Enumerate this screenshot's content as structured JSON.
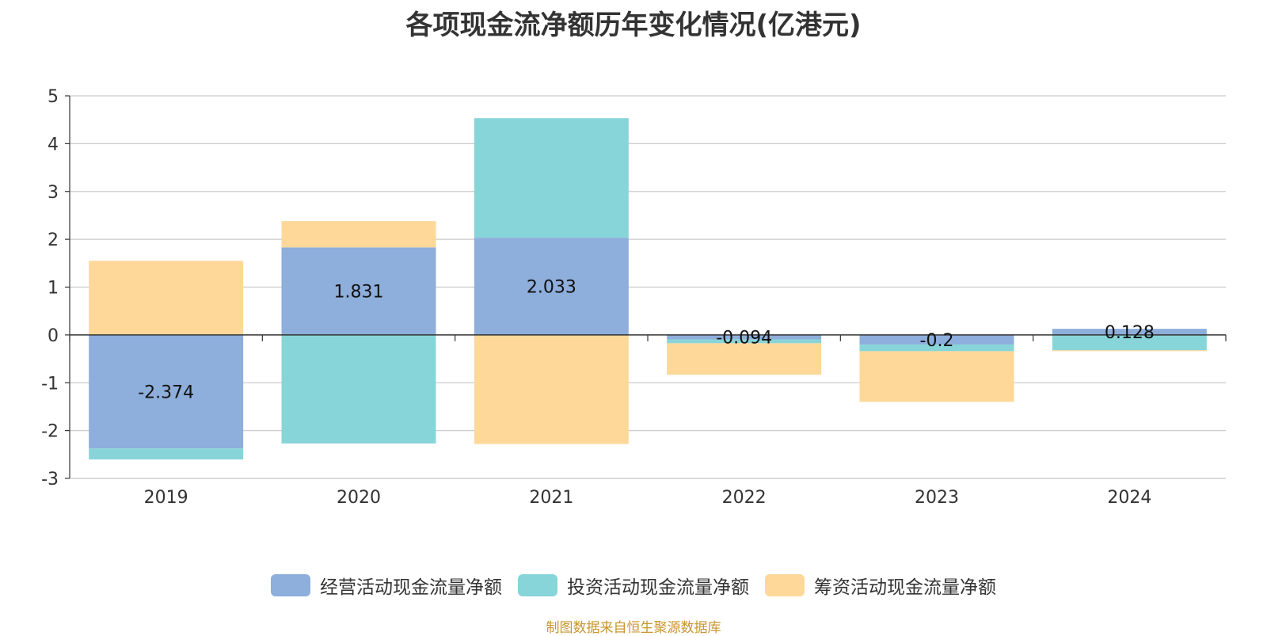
{
  "chart_data": {
    "type": "bar",
    "stacked": true,
    "title": "各项现金流净额历年变化情况(亿港元)",
    "categories": [
      "2019",
      "2020",
      "2021",
      "2022",
      "2023",
      "2024"
    ],
    "ylim": [
      -3,
      5
    ],
    "yticks": [
      5,
      4,
      3,
      2,
      1,
      0,
      -1,
      -2,
      -3
    ],
    "grid": true,
    "legend_position": "bottom",
    "series": [
      {
        "name": "经营活动现金流量净额",
        "color": "#8eaedb",
        "values": [
          -2.374,
          1.831,
          2.033,
          -0.094,
          -0.2,
          0.128
        ],
        "labels": [
          "-2.374",
          "1.831",
          "2.033",
          "-0.094",
          "-0.2",
          "0.128"
        ]
      },
      {
        "name": "投资活动现金流量净额",
        "color": "#87d5d8",
        "values": [
          -0.23,
          -2.27,
          2.5,
          -0.08,
          -0.14,
          -0.32
        ]
      },
      {
        "name": "筹资活动现金流量净额",
        "color": "#fdd898",
        "values": [
          1.55,
          0.55,
          -2.28,
          -0.66,
          -1.06,
          -0.02
        ]
      }
    ],
    "source": "制图数据来自恒生聚源数据库"
  }
}
